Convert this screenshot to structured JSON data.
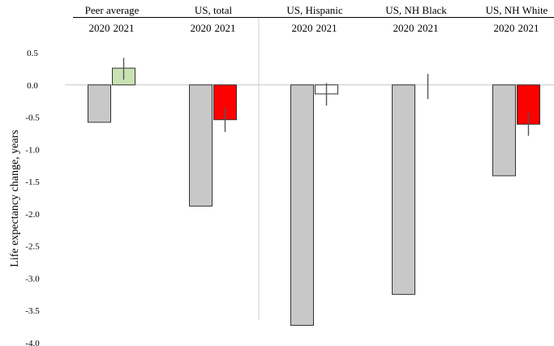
{
  "chart_data": {
    "type": "bar",
    "ylabel": "Life expectancy change, years",
    "ylim": [
      -4.0,
      0.5
    ],
    "yticks": [
      "0.5",
      "0.0",
      "-0.5",
      "-1.0",
      "-1.5",
      "-2.0",
      "-2.5",
      "-3.0",
      "-3.5",
      "-4.0"
    ],
    "groups": [
      {
        "name": "Peer average",
        "years": [
          "2020",
          "2021"
        ],
        "values": [
          -0.58,
          0.26
        ],
        "errors": [
          null,
          [
            0.08,
            0.42
          ]
        ],
        "fills": [
          "#c8c8c8",
          "#c9e2b3"
        ]
      },
      {
        "name": "US, total",
        "years": [
          "2020",
          "2021"
        ],
        "values": [
          -1.88,
          -0.54
        ],
        "errors": [
          null,
          [
            -0.73,
            -0.35
          ]
        ],
        "fills": [
          "#c8c8c8",
          "#ff0000"
        ]
      },
      {
        "name": "US, Hispanic",
        "years": [
          "2020",
          "2021"
        ],
        "values": [
          -3.73,
          -0.14
        ],
        "errors": [
          null,
          [
            -0.32,
            0.03
          ]
        ],
        "fills": [
          "#c8c8c8",
          "#ffffff"
        ]
      },
      {
        "name": "US, NH Black",
        "years": [
          "2020",
          "2021"
        ],
        "values": [
          -3.25,
          0.0
        ],
        "errors": [
          null,
          [
            -0.22,
            0.17
          ]
        ],
        "fills": [
          "#c8c8c8",
          "#ffffff"
        ]
      },
      {
        "name": "US, NH White",
        "years": [
          "2020",
          "2021"
        ],
        "values": [
          -1.41,
          -0.61
        ],
        "errors": [
          null,
          [
            -0.79,
            -0.43
          ]
        ],
        "fills": [
          "#c8c8c8",
          "#ff0000"
        ]
      }
    ],
    "grid": false,
    "legend": "none"
  }
}
